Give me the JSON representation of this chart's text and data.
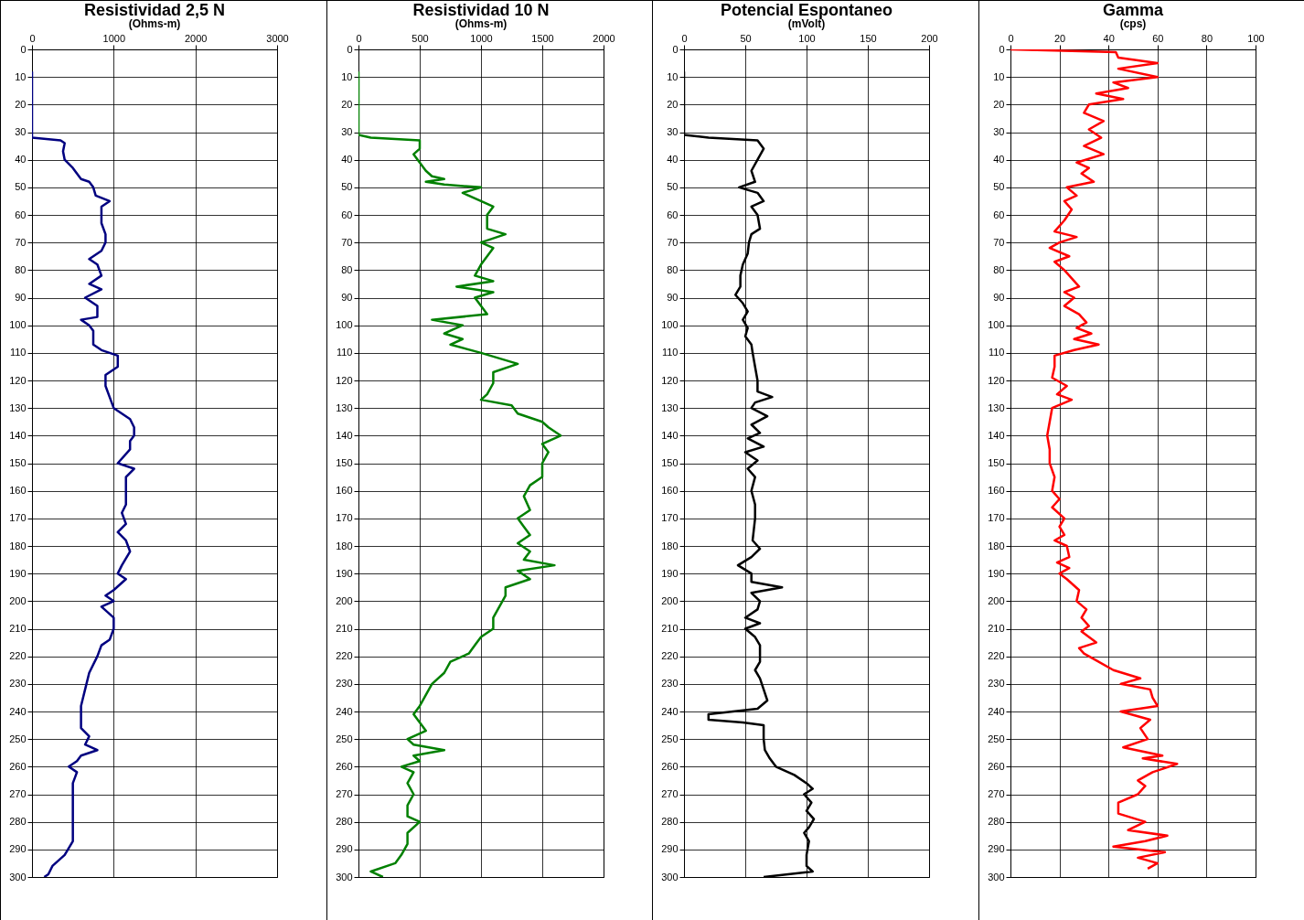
{
  "chart_data": [
    {
      "type": "line",
      "title": "Resistividad 2,5 N",
      "subtitle": "(Ohms-m)",
      "xlim": [
        0,
        3000
      ],
      "xticks": [
        0,
        1000,
        2000,
        3000
      ],
      "ylim": [
        300,
        0
      ],
      "yticks": [
        0,
        10,
        20,
        30,
        40,
        50,
        60,
        70,
        80,
        90,
        100,
        110,
        120,
        130,
        140,
        150,
        160,
        170,
        180,
        190,
        200,
        210,
        220,
        230,
        240,
        250,
        260,
        270,
        280,
        290,
        300
      ],
      "grid": true,
      "series": [
        {
          "color": "#000080",
          "x": [
            0,
            0,
            0,
            350,
            400,
            380,
            400,
            500,
            550,
            600,
            700,
            750,
            780,
            950,
            850,
            850,
            900,
            900,
            850,
            700,
            800,
            850,
            700,
            850,
            650,
            800,
            800,
            600,
            700,
            750,
            750,
            850,
            1050,
            1050,
            900,
            900,
            950,
            1000,
            1200,
            1250,
            1250,
            1200,
            1200,
            1050,
            1250,
            1150,
            1150,
            1100,
            1150,
            1050,
            1150,
            1200,
            1100,
            1050,
            1150,
            1000,
            900,
            1000,
            850,
            1000,
            1000,
            950,
            850,
            800,
            700,
            650,
            600,
            600,
            600,
            700,
            650,
            800,
            600,
            550,
            450,
            550,
            500,
            500,
            500,
            500,
            500,
            400,
            250,
            200,
            150
          ],
          "values": [
            8,
            31,
            32,
            33,
            34,
            37,
            40,
            43,
            45,
            47,
            48,
            50,
            53,
            55,
            57,
            63,
            67,
            70,
            73,
            76,
            78,
            82,
            85,
            87,
            90,
            93,
            97,
            98,
            100,
            102,
            107,
            109,
            111,
            115,
            118,
            122,
            126,
            130,
            134,
            137,
            140,
            142,
            145,
            150,
            152,
            155,
            165,
            168,
            172,
            175,
            178,
            182,
            187,
            190,
            192,
            196,
            198,
            200,
            202,
            206,
            210,
            214,
            216,
            220,
            226,
            232,
            238,
            242,
            246,
            249,
            252,
            254,
            256,
            258,
            260,
            262,
            266,
            270,
            275,
            282,
            287,
            292,
            296,
            299,
            300
          ]
        }
      ]
    },
    {
      "type": "line",
      "title": "Resistividad 10 N",
      "subtitle": "(Ohms-m)",
      "xlim": [
        0,
        2000
      ],
      "xticks": [
        0,
        500,
        1000,
        1500,
        2000
      ],
      "ylim": [
        300,
        0
      ],
      "yticks": [
        0,
        10,
        20,
        30,
        40,
        50,
        60,
        70,
        80,
        90,
        100,
        110,
        120,
        130,
        140,
        150,
        160,
        170,
        180,
        190,
        200,
        210,
        220,
        230,
        240,
        250,
        260,
        270,
        280,
        290,
        300
      ],
      "grid": true,
      "series": [
        {
          "color": "#008000",
          "x": [
            0,
            0,
            100,
            500,
            500,
            450,
            500,
            550,
            600,
            700,
            550,
            700,
            1000,
            850,
            1000,
            1100,
            1050,
            1050,
            1200,
            1000,
            1100,
            1050,
            1000,
            950,
            1100,
            800,
            1100,
            950,
            1000,
            1050,
            600,
            850,
            700,
            850,
            750,
            1000,
            1150,
            1300,
            1100,
            1100,
            1050,
            1000,
            1250,
            1300,
            1500,
            1550,
            1650,
            1500,
            1550,
            1500,
            1500,
            1400,
            1350,
            1400,
            1300,
            1350,
            1400,
            1300,
            1400,
            1350,
            1600,
            1300,
            1400,
            1200,
            1200,
            1150,
            1100,
            1100,
            1000,
            950,
            900,
            750,
            700,
            600,
            550,
            500,
            450,
            500,
            550,
            400,
            450,
            700,
            450,
            500,
            350,
            450,
            400,
            450,
            400,
            400,
            500,
            400,
            400,
            350,
            300,
            100,
            200
          ],
          "values": [
            8,
            31,
            32,
            33,
            36,
            38,
            41,
            44,
            46,
            47,
            48,
            49,
            50,
            52,
            55,
            57,
            60,
            65,
            67,
            70,
            72,
            75,
            78,
            82,
            84,
            86,
            88,
            90,
            93,
            96,
            98,
            100,
            103,
            105,
            107,
            110,
            112,
            114,
            117,
            121,
            125,
            127,
            129,
            132,
            135,
            137,
            140,
            143,
            146,
            150,
            155,
            158,
            162,
            167,
            170,
            173,
            176,
            179,
            182,
            185,
            187,
            189,
            192,
            195,
            198,
            202,
            206,
            210,
            213,
            216,
            219,
            222,
            226,
            230,
            234,
            238,
            241,
            244,
            247,
            250,
            252,
            254,
            256,
            258,
            260,
            262,
            266,
            270,
            274,
            278,
            280,
            284,
            288,
            292,
            295,
            298,
            300
          ]
        }
      ]
    },
    {
      "type": "line",
      "title": "Potencial Espontaneo",
      "subtitle": "(mVolt)",
      "xlim": [
        0,
        200
      ],
      "xticks": [
        0,
        50,
        100,
        150,
        200
      ],
      "ylim": [
        300,
        0
      ],
      "yticks": [
        0,
        10,
        20,
        30,
        40,
        50,
        60,
        70,
        80,
        90,
        100,
        110,
        120,
        130,
        140,
        150,
        160,
        170,
        180,
        190,
        200,
        210,
        220,
        230,
        240,
        250,
        260,
        270,
        280,
        290,
        300
      ],
      "grid": true,
      "series": [
        {
          "color": "#000000",
          "x": [
            0,
            0,
            20,
            60,
            65,
            60,
            55,
            58,
            45,
            60,
            65,
            55,
            60,
            62,
            55,
            53,
            52,
            48,
            46,
            46,
            42,
            48,
            52,
            48,
            52,
            50,
            55,
            56,
            58,
            60,
            60,
            72,
            58,
            55,
            68,
            55,
            62,
            52,
            65,
            50,
            60,
            52,
            58,
            55,
            58,
            58,
            56,
            62,
            55,
            44,
            55,
            55,
            80,
            55,
            62,
            60,
            50,
            62,
            50,
            58,
            62,
            62,
            58,
            62,
            65,
            68,
            60,
            20,
            20,
            48,
            65,
            65,
            66,
            70,
            75,
            90,
            100,
            105,
            98,
            104,
            100,
            106,
            102,
            98,
            102,
            100,
            100,
            105,
            65
          ],
          "values": [
            8,
            31,
            32,
            33,
            36,
            40,
            44,
            48,
            50,
            52,
            55,
            57,
            60,
            65,
            67,
            70,
            74,
            78,
            82,
            86,
            89,
            92,
            95,
            98,
            101,
            104,
            107,
            110,
            115,
            120,
            124,
            126,
            128,
            130,
            133,
            136,
            139,
            141,
            144,
            146,
            149,
            152,
            155,
            160,
            165,
            170,
            178,
            181,
            184,
            187,
            190,
            193,
            195,
            197,
            200,
            203,
            206,
            208,
            210,
            213,
            216,
            222,
            225,
            228,
            232,
            236,
            239,
            241,
            243,
            244,
            245,
            250,
            254,
            257,
            260,
            263,
            266,
            268,
            270,
            273,
            276,
            279,
            282,
            284,
            287,
            292,
            296,
            298,
            300
          ]
        }
      ]
    },
    {
      "type": "line",
      "title": "Gamma",
      "subtitle": "(cps)",
      "xlim": [
        0,
        100
      ],
      "xticks": [
        0,
        20,
        40,
        60,
        80,
        100
      ],
      "ylim": [
        300,
        0
      ],
      "yticks": [
        0,
        10,
        20,
        30,
        40,
        50,
        60,
        70,
        80,
        90,
        100,
        110,
        120,
        130,
        140,
        150,
        160,
        170,
        180,
        190,
        200,
        210,
        220,
        230,
        240,
        250,
        260,
        270,
        280,
        290,
        300
      ],
      "grid": true,
      "series": [
        {
          "color": "#ff0000",
          "x": [
            0,
            43,
            44,
            60,
            44,
            60,
            42,
            48,
            35,
            46,
            32,
            30,
            38,
            32,
            37,
            30,
            38,
            27,
            32,
            29,
            34,
            23,
            27,
            22,
            25,
            22,
            18,
            27,
            20,
            16,
            24,
            18,
            22,
            25,
            28,
            22,
            26,
            22,
            28,
            31,
            27,
            33,
            26,
            36,
            26,
            18,
            18,
            17,
            23,
            19,
            25,
            17,
            16,
            15,
            16,
            16,
            18,
            17,
            20,
            17,
            22,
            20,
            22,
            18,
            23,
            24,
            19,
            24,
            20,
            23,
            28,
            27,
            31,
            29,
            32,
            29,
            35,
            28,
            30,
            34,
            42,
            53,
            45,
            57,
            58,
            60,
            45,
            57,
            53,
            56,
            46,
            62,
            54,
            68,
            58,
            52,
            55,
            52,
            44,
            44,
            55,
            48,
            64,
            55,
            42,
            63,
            52,
            60,
            56
          ],
          "values": [
            0,
            1,
            3,
            5,
            7,
            10,
            12,
            14,
            16,
            18,
            20,
            23,
            26,
            29,
            32,
            35,
            38,
            41,
            43,
            45,
            48,
            50,
            53,
            55,
            58,
            62,
            66,
            68,
            70,
            72,
            75,
            77,
            80,
            83,
            86,
            88,
            90,
            93,
            96,
            99,
            101,
            103,
            105,
            107,
            109,
            111,
            115,
            119,
            122,
            125,
            127,
            130,
            135,
            140,
            145,
            150,
            155,
            160,
            163,
            166,
            170,
            173,
            176,
            178,
            180,
            184,
            186,
            188,
            190,
            192,
            196,
            200,
            203,
            206,
            209,
            211,
            215,
            217,
            219,
            221,
            225,
            228,
            230,
            232,
            235,
            238,
            240,
            243,
            246,
            250,
            253,
            256,
            257,
            259,
            262,
            265,
            267,
            270,
            273,
            277,
            280,
            283,
            285,
            287,
            289,
            291,
            293,
            295,
            297
          ]
        }
      ]
    }
  ]
}
